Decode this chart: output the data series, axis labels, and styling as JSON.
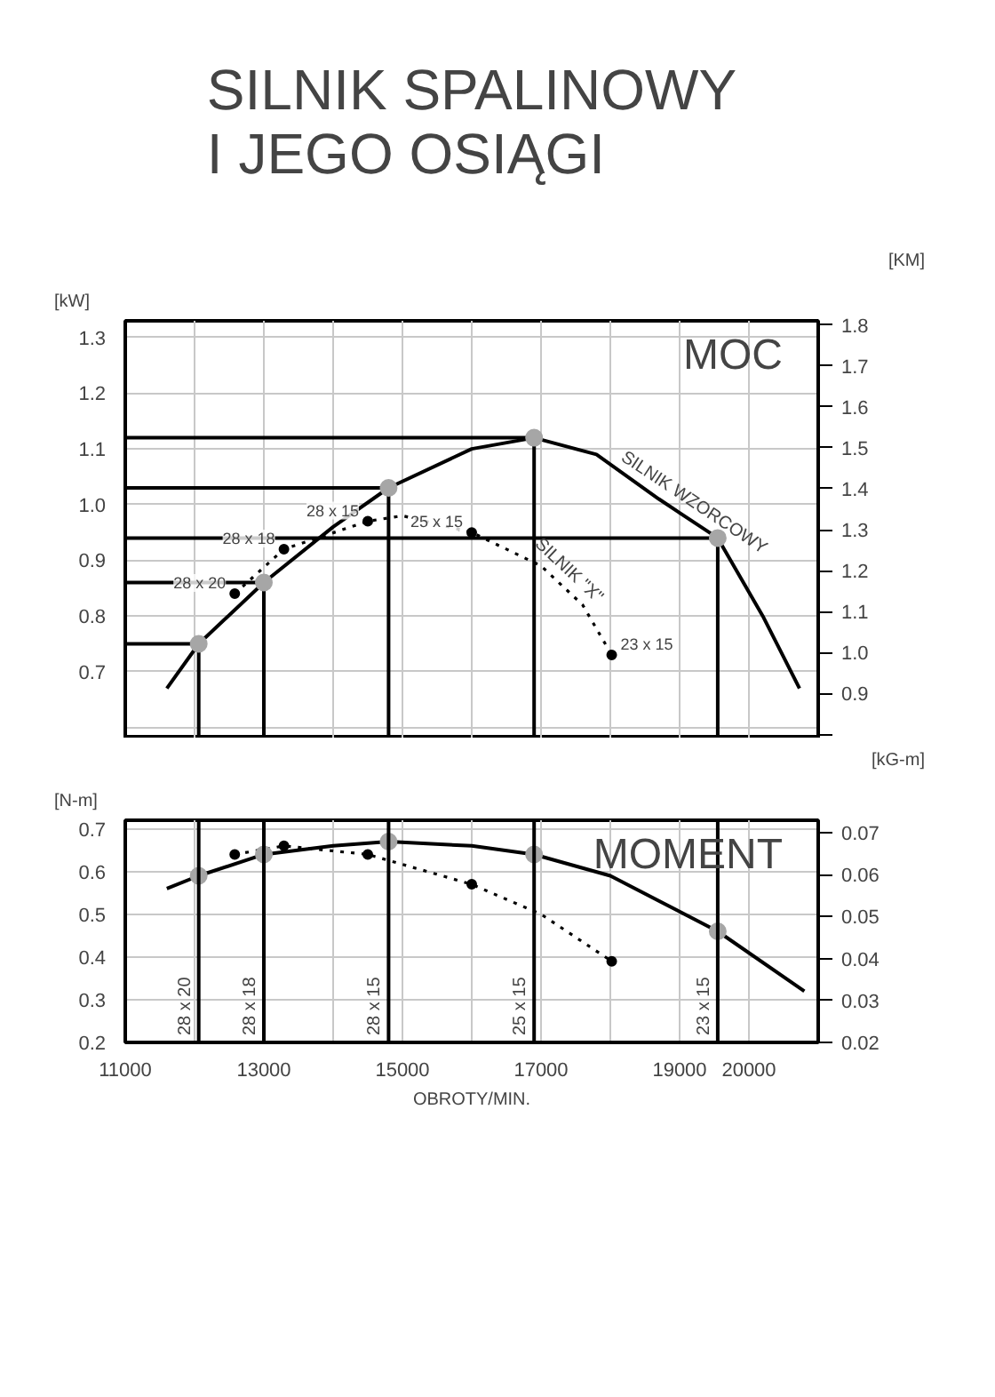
{
  "chart_data": [
    {
      "type": "line",
      "title": "SILNIK SPALINOWY\nI JEGO OSIĄGI",
      "ylabel": "[kW]",
      "y2label": "[KM]",
      "annotations": [
        "MOC",
        {
          "text": "28 x 20",
          "x": 12580,
          "y": 0.84
        },
        {
          "text": "28 x 18",
          "x": 13290,
          "y": 0.92
        },
        {
          "text": "28 x 15",
          "x": 14500,
          "y": 0.97
        },
        {
          "text": "25 x 15",
          "x": 16000,
          "y": 0.95
        },
        {
          "text": "23 x 15",
          "x": 18020,
          "y": 0.73
        }
      ],
      "xlim": [
        11000,
        21000
      ],
      "xticks": [
        11000,
        12000,
        13000,
        14000,
        15000,
        16000,
        17000,
        18000,
        19000,
        20000,
        21000
      ],
      "ylim": [
        0.58,
        1.33
      ],
      "yticks": [
        {
          "value": 0.6,
          "label": null
        },
        0.7,
        0.8,
        0.9,
        {
          "value": 1.0,
          "label": "1.0"
        },
        1.1,
        1.2,
        1.3
      ],
      "y2lim": [
        0.79,
        1.81
      ],
      "y2ticks": [
        {
          "value": 0.8,
          "label": null
        },
        0.9,
        {
          "value": 1.0,
          "label": "1.0"
        },
        1.1,
        1.2,
        1.3,
        1.4,
        1.5,
        1.6,
        1.7,
        1.8
      ],
      "tick_labels": "y",
      "grid": true,
      "series": [
        {
          "name": "SILNIK WZORCOWY",
          "color": "#000000",
          "line_style": "solid",
          "marker": "none",
          "x": [
            11600,
            12060,
            13000,
            14000,
            14800,
            16000,
            16900,
            17800,
            18700,
            19550,
            20200,
            20730
          ],
          "values": [
            0.67,
            0.75,
            0.86,
            0.96,
            1.03,
            1.1,
            1.12,
            1.09,
            1.01,
            0.94,
            0.8,
            0.67
          ]
        },
        {
          "name": "SILNIK \"X\"",
          "color": "#000000",
          "line_style": "dotted",
          "marker": "none",
          "x": [
            12580,
            13290,
            14500,
            15000,
            16000,
            17000,
            17600,
            18020
          ],
          "values": [
            0.84,
            0.92,
            0.97,
            0.98,
            0.95,
            0.89,
            0.82,
            0.73
          ]
        },
        {
          "type": "line",
          "color": "#000000",
          "line_style": "solid",
          "marker": "none",
          "x": [
            11000,
            12060
          ],
          "values": [
            0.75,
            0.75
          ]
        },
        {
          "type": "line",
          "color": "#000000",
          "line_style": "solid",
          "marker": "none",
          "x": [
            11000,
            13000
          ],
          "values": [
            0.86,
            0.86
          ]
        },
        {
          "type": "line",
          "color": "#000000",
          "line_style": "solid",
          "marker": "none",
          "x": [
            11000,
            14800
          ],
          "values": [
            1.03,
            1.03
          ]
        },
        {
          "type": "line",
          "color": "#000000",
          "line_style": "solid",
          "marker": "none",
          "x": [
            11000,
            16900
          ],
          "values": [
            1.12,
            1.12
          ]
        },
        {
          "type": "line",
          "color": "#000000",
          "line_style": "solid",
          "marker": "none",
          "x": [
            11000,
            19550
          ],
          "values": [
            0.94,
            0.94
          ]
        },
        {
          "type": "line",
          "color": "#000000",
          "line_style": "solid",
          "marker": "none",
          "x": [
            12060,
            12060
          ],
          "values": [
            0.58,
            0.75
          ]
        },
        {
          "type": "line",
          "color": "#000000",
          "line_style": "solid",
          "marker": "none",
          "x": [
            13000,
            13000
          ],
          "values": [
            0.58,
            0.86
          ]
        },
        {
          "type": "line",
          "color": "#000000",
          "line_style": "solid",
          "marker": "none",
          "x": [
            14800,
            14800
          ],
          "values": [
            0.58,
            1.03
          ]
        },
        {
          "type": "line",
          "color": "#000000",
          "line_style": "solid",
          "marker": "none",
          "x": [
            16900,
            16900
          ],
          "values": [
            0.58,
            1.12
          ]
        },
        {
          "type": "line",
          "color": "#000000",
          "line_style": "solid",
          "marker": "none",
          "x": [
            19550,
            19550
          ],
          "values": [
            0.58,
            0.94
          ]
        },
        {
          "type": "scatter",
          "color": "#a6a6a6",
          "marker": "circle",
          "x": [
            12060,
            13000,
            14800,
            16900,
            19550
          ],
          "values": [
            0.75,
            0.86,
            1.03,
            1.12,
            0.94
          ]
        },
        {
          "type": "scatter",
          "color": "#000000",
          "marker": "circle",
          "x": [
            12580,
            13290,
            14500,
            16000,
            18020
          ],
          "values": [
            0.84,
            0.92,
            0.97,
            0.95,
            0.73
          ]
        }
      ]
    },
    {
      "type": "line",
      "xlabel": "OBROTY/MIN.",
      "ylabel": "[N-m]",
      "y2label": "[kG-m]",
      "annotations": [
        "MOMENT"
      ],
      "xlim": [
        11000,
        21000
      ],
      "xticks": [
        11000,
        {
          "value": 12000,
          "label": null
        },
        13000,
        {
          "value": 14000,
          "label": null
        },
        15000,
        {
          "value": 16000,
          "label": null
        },
        17000,
        {
          "value": 18000,
          "label": null
        },
        19000,
        20000,
        {
          "value": 21000,
          "label": null
        }
      ],
      "ylim": [
        0.2,
        0.72
      ],
      "yticks": [
        0.2,
        0.3,
        0.4,
        0.5,
        0.6,
        0.7
      ],
      "y2lim": [
        0.02,
        0.073
      ],
      "y2ticks": [
        0.02,
        0.03,
        0.04,
        0.05,
        0.06,
        0.07
      ],
      "grid": true,
      "ref_lines": [
        {
          "axis": "x",
          "value": 12060,
          "label": "28 x 20"
        },
        {
          "axis": "x",
          "value": 13000,
          "label": "28 x 18"
        },
        {
          "axis": "x",
          "value": 14800,
          "label": "28 x 15"
        },
        {
          "axis": "x",
          "value": 16900,
          "label": "25 x 15"
        },
        {
          "axis": "x",
          "value": 19550,
          "label": "23 x 15"
        }
      ],
      "series": [
        {
          "color": "#000000",
          "line_style": "solid",
          "marker": "none",
          "x": [
            11600,
            12060,
            13000,
            14000,
            14800,
            16000,
            16900,
            18000,
            19550,
            20800
          ],
          "values": [
            0.56,
            0.59,
            0.64,
            0.66,
            0.67,
            0.66,
            0.64,
            0.59,
            0.46,
            0.32
          ]
        },
        {
          "color": "#000000",
          "line_style": "dotted",
          "marker": "none",
          "x": [
            12580,
            13290,
            14500,
            16000,
            17000,
            18020
          ],
          "values": [
            0.64,
            0.66,
            0.64,
            0.57,
            0.5,
            0.39
          ]
        },
        {
          "type": "scatter",
          "color": "#a6a6a6",
          "marker": "circle",
          "x": [
            12060,
            13000,
            14800,
            16900,
            19550
          ],
          "values": [
            0.59,
            0.64,
            0.67,
            0.64,
            0.46
          ]
        },
        {
          "type": "scatter",
          "color": "#000000",
          "marker": "circle",
          "x": [
            12580,
            13290,
            14500,
            16000,
            18020
          ],
          "values": [
            0.64,
            0.66,
            0.64,
            0.57,
            0.39
          ]
        }
      ]
    }
  ]
}
